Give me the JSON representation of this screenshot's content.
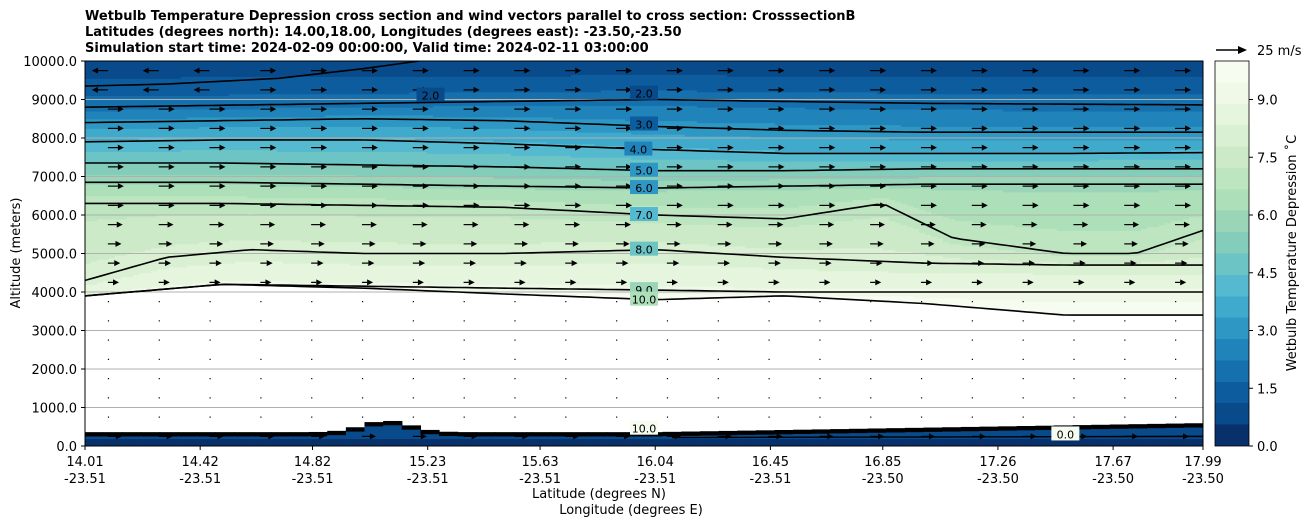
{
  "chart_data": {
    "type": "contour",
    "title": [
      "Wetbulb Temperature Depression cross section and wind vectors parallel to cross section: CrosssectionB",
      "Latitudes (degrees north): 14.00,18.00, Longitudes (degrees east): -23.50,-23.50",
      "Simulation start time: 2024-02-09 00:00:00, Valid time: 2024-02-11 03:00:00"
    ],
    "ylabel": "Altitude (meters)",
    "xlabel": "Latitude (degrees N)",
    "xlabel2": "Longitude (degrees E)",
    "ylim": [
      0,
      10000
    ],
    "y_ticks": [
      "0.0",
      "1000.0",
      "2000.0",
      "3000.0",
      "4000.0",
      "5000.0",
      "6000.0",
      "7000.0",
      "8000.0",
      "9000.0",
      "10000.0"
    ],
    "x_ticks": [
      {
        "lat": "14.01",
        "lon": "-23.51"
      },
      {
        "lat": "14.42",
        "lon": "-23.51"
      },
      {
        "lat": "14.82",
        "lon": "-23.51"
      },
      {
        "lat": "15.23",
        "lon": "-23.51"
      },
      {
        "lat": "15.63",
        "lon": "-23.51"
      },
      {
        "lat": "16.04",
        "lon": "-23.51"
      },
      {
        "lat": "16.45",
        "lon": "-23.51"
      },
      {
        "lat": "16.85",
        "lon": "-23.50"
      },
      {
        "lat": "17.26",
        "lon": "-23.50"
      },
      {
        "lat": "17.67",
        "lon": "-23.50"
      },
      {
        "lat": "17.99",
        "lon": "-23.50"
      }
    ],
    "grid": "horizontal",
    "colorbar": {
      "label": "Wetbulb Temperature Depression ˚C",
      "range": [
        0,
        10
      ],
      "ticks": [
        "0.0",
        "1.5",
        "3.0",
        "4.5",
        "6.0",
        "7.5",
        "9.0"
      ],
      "colors": [
        "#08306b",
        "#084a8a",
        "#0c5c9e",
        "#1670ad",
        "#2084bb",
        "#2e97c4",
        "#40aacd",
        "#55b9cf",
        "#6cc4c4",
        "#84cdbb",
        "#9ad5b8",
        "#ade0b8",
        "#bde5c0",
        "#cceac8",
        "#daf0d2",
        "#e6f5dd",
        "#f0f9e8",
        "#f7fcf1"
      ]
    },
    "wind_key": "25 m/s",
    "contour_labels": [
      "2.0",
      "2.0",
      "3.0",
      "4.0",
      "5.0",
      "6.0",
      "7.0",
      "8.0",
      "9.0",
      "10.0",
      "10.0",
      "0.0"
    ],
    "contours": [
      {
        "level": 2.0,
        "x": [
          14.01,
          14.5,
          15.0,
          15.5,
          16.04,
          16.5,
          17.0,
          17.5,
          17.99
        ],
        "y": [
          8800,
          8850,
          8900,
          8950,
          9000,
          8950,
          8900,
          8880,
          8860
        ]
      },
      {
        "level": 3.0,
        "x": [
          14.01,
          14.5,
          15.0,
          15.5,
          16.04,
          16.5,
          17.0,
          17.5,
          17.99
        ],
        "y": [
          8400,
          8450,
          8500,
          8450,
          8300,
          8200,
          8150,
          8150,
          8150
        ]
      },
      {
        "level": 4.0,
        "x": [
          14.01,
          14.5,
          15.0,
          15.5,
          16.04,
          16.5,
          17.0,
          17.5,
          17.99
        ],
        "y": [
          7900,
          7950,
          7950,
          7850,
          7700,
          7600,
          7600,
          7600,
          7620
        ]
      },
      {
        "level": 5.0,
        "x": [
          14.01,
          14.5,
          15.0,
          15.5,
          16.04,
          16.5,
          17.0,
          17.5,
          17.99
        ],
        "y": [
          7350,
          7350,
          7300,
          7250,
          7150,
          7150,
          7200,
          7200,
          7200
        ]
      },
      {
        "level": 6.0,
        "x": [
          14.01,
          14.5,
          15.0,
          15.5,
          16.04,
          16.5,
          17.0,
          17.5,
          17.99
        ],
        "y": [
          6850,
          6850,
          6800,
          6750,
          6700,
          6750,
          6800,
          6800,
          6800
        ]
      },
      {
        "level": 7.0,
        "x": [
          14.01,
          14.5,
          15.0,
          15.5,
          16.04,
          16.5,
          16.85,
          17.1,
          17.5,
          17.75,
          17.99
        ],
        "y": [
          6300,
          6300,
          6250,
          6200,
          6000,
          5900,
          6300,
          5400,
          5000,
          5000,
          5600
        ]
      },
      {
        "level": 8.0,
        "x": [
          14.01,
          14.3,
          14.6,
          15.0,
          15.5,
          16.04,
          16.5,
          17.0,
          17.5,
          17.99
        ],
        "y": [
          4300,
          4900,
          5100,
          5000,
          5000,
          5100,
          4900,
          4750,
          4700,
          4700
        ]
      },
      {
        "level": 9.0,
        "x": [
          14.01,
          14.5,
          15.0,
          15.5,
          16.04,
          16.5,
          17.0,
          17.5,
          17.99
        ],
        "y": [
          3900,
          4200,
          4150,
          4100,
          4050,
          4000,
          4000,
          4000,
          4000
        ]
      },
      {
        "level": 10.0,
        "x": [
          14.01,
          14.5,
          15.0,
          15.5,
          16.04,
          16.5,
          17.0,
          17.5,
          17.99
        ],
        "y": [
          3900,
          4200,
          4100,
          3950,
          3800,
          3900,
          3700,
          3400,
          3400
        ]
      }
    ]
  }
}
